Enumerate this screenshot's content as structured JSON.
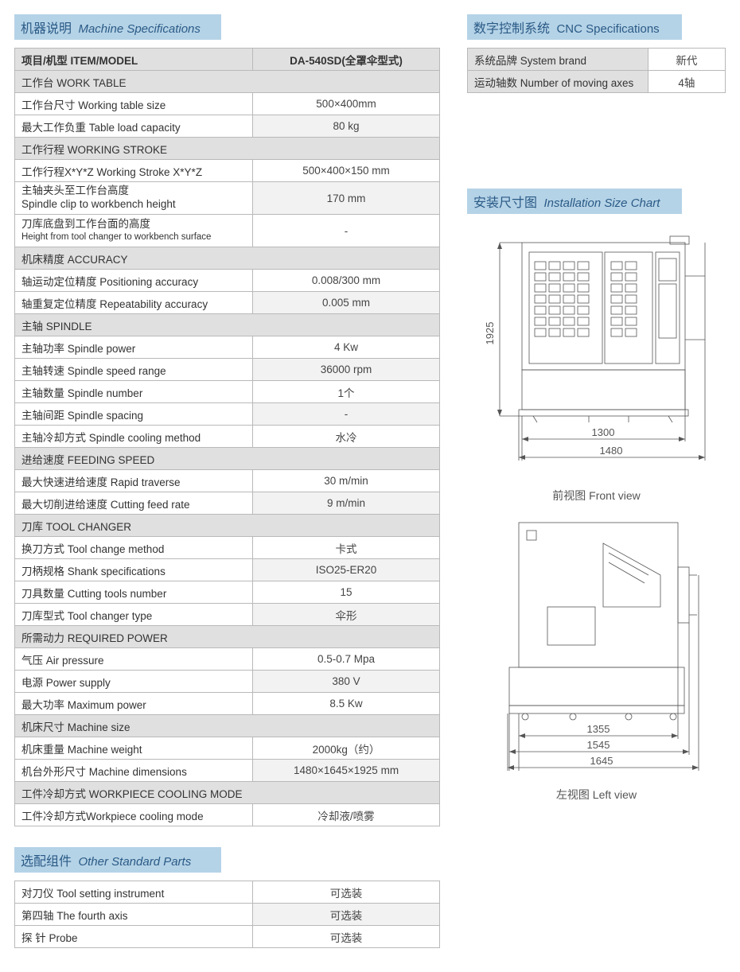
{
  "colors": {
    "header_bg": "#b5d3e7",
    "header_text": "#2a5a86",
    "group_bg": "#e0e0e0",
    "border": "#b9b9b9",
    "body_text": "#444",
    "diagram_stroke": "#555"
  },
  "fonts": {
    "header_en_italic": true,
    "header_fontsize_pt": 12,
    "body_fontsize_pt": 10
  },
  "machine_spec": {
    "header_cn": "机器说明",
    "header_en": "Machine Specifications",
    "col_label": "项目/机型 ITEM/MODEL",
    "col_value": "DA-540SD(全罩伞型式)",
    "col_widths": [
      0.56,
      0.44
    ],
    "rows": [
      {
        "group": "工作台 WORK TABLE"
      },
      {
        "label": "工作台尺寸 Working table size",
        "value": "500×400mm"
      },
      {
        "label": "最大工作负重 Table load capacity",
        "value": "80 kg",
        "alt": true
      },
      {
        "group": "工作行程 WORKING STROKE"
      },
      {
        "label": "工作行程X*Y*Z Working Stroke X*Y*Z",
        "value": "500×400×150 mm"
      },
      {
        "label": "主轴夹头至工作台高度",
        "label2": "Spindle clip to workbench height",
        "value": "170 mm",
        "alt": true
      },
      {
        "label": "刀库底盘到工作台面的高度",
        "label2": "Height from tool changer to workbench surface",
        "value": "-",
        "small2": true
      },
      {
        "group": "机床精度 ACCURACY"
      },
      {
        "label": "轴运动定位精度 Positioning accuracy",
        "value": "0.008/300 mm"
      },
      {
        "label": "轴重复定位精度 Repeatability accuracy",
        "value": "0.005 mm",
        "alt": true
      },
      {
        "group": "主轴 SPINDLE"
      },
      {
        "label": "主轴功率 Spindle power",
        "value": "4 Kw"
      },
      {
        "label": "主轴转速 Spindle speed range",
        "value": "36000 rpm",
        "alt": true
      },
      {
        "label": "主轴数量 Spindle number",
        "value": "1个"
      },
      {
        "label": "主轴间距 Spindle spacing",
        "value": "-",
        "alt": true
      },
      {
        "label": "主轴冷却方式 Spindle cooling method",
        "value": "水冷"
      },
      {
        "group": "进给速度 FEEDING SPEED"
      },
      {
        "label": "最大快速进给速度 Rapid traverse",
        "value": "30 m/min"
      },
      {
        "label": "最大切削进给速度 Cutting feed rate",
        "value": "9 m/min",
        "alt": true
      },
      {
        "group": "刀库 TOOL CHANGER"
      },
      {
        "label": "换刀方式 Tool change method",
        "value": "卡式"
      },
      {
        "label": "刀柄规格 Shank specifications",
        "value": "ISO25-ER20",
        "alt": true
      },
      {
        "label": "刀具数量 Cutting tools number",
        "value": "15"
      },
      {
        "label": "刀库型式 Tool changer type",
        "value": "伞形",
        "alt": true
      },
      {
        "group": "所需动力 REQUIRED POWER"
      },
      {
        "label": "气压 Air pressure",
        "value": "0.5-0.7 Mpa"
      },
      {
        "label": "电源 Power supply",
        "value": "380 V",
        "alt": true
      },
      {
        "label": "最大功率 Maximum power",
        "value": "8.5 Kw"
      },
      {
        "group": "机床尺寸 Machine size"
      },
      {
        "label": "机床重量 Machine weight",
        "value": "2000kg（约）"
      },
      {
        "label": "机台外形尺寸 Machine dimensions",
        "value": "1480×1645×1925 mm",
        "alt": true
      },
      {
        "group": "工件冷却方式 WORKPIECE COOLING MODE"
      },
      {
        "label": "工件冷却方式Workpiece cooling mode",
        "value": "冷却液/喷雾"
      }
    ]
  },
  "other_parts": {
    "header_cn": "选配组件",
    "header_en": "Other Standard Parts",
    "col_widths": [
      0.56,
      0.44
    ],
    "rows": [
      {
        "label": "对刀仪 Tool setting instrument",
        "value": "可选装"
      },
      {
        "label": "第四轴 The fourth axis",
        "value": "可选装",
        "alt": true
      },
      {
        "label": "探  针 Probe",
        "value": "可选装"
      }
    ]
  },
  "cnc_spec": {
    "header_cn": "数字控制系统",
    "header_en": "CNC Specifications",
    "col_widths": [
      0.7,
      0.3
    ],
    "rows": [
      {
        "label": "系统品牌 System brand",
        "value": "新代"
      },
      {
        "label": "运动轴数 Number of moving axes",
        "value": "4轴"
      }
    ]
  },
  "install_chart": {
    "header_cn": "安装尺寸图",
    "header_en": "Installation Size Chart",
    "front_view": {
      "caption": "前视图  Front view",
      "height": "1925",
      "width_inner": "1300",
      "width_outer": "1480"
    },
    "left_view": {
      "caption": "左视图  Left view",
      "width_1": "1355",
      "width_2": "1545",
      "width_3": "1645"
    }
  }
}
